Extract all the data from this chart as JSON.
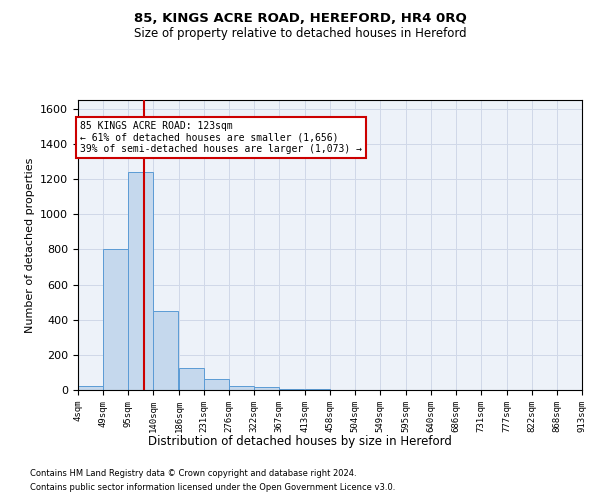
{
  "title1": "85, KINGS ACRE ROAD, HEREFORD, HR4 0RQ",
  "title2": "Size of property relative to detached houses in Hereford",
  "xlabel": "Distribution of detached houses by size in Hereford",
  "ylabel": "Number of detached properties",
  "annotation_line1": "85 KINGS ACRE ROAD: 123sqm",
  "annotation_line2": "← 61% of detached houses are smaller (1,656)",
  "annotation_line3": "39% of semi-detached houses are larger (1,073) →",
  "footer1": "Contains HM Land Registry data © Crown copyright and database right 2024.",
  "footer2": "Contains public sector information licensed under the Open Government Licence v3.0.",
  "property_size": 123,
  "bin_edges": [
    4,
    49,
    95,
    140,
    186,
    231,
    276,
    322,
    367,
    413,
    458,
    504,
    549,
    595,
    640,
    686,
    731,
    777,
    822,
    868,
    913
  ],
  "bin_counts": [
    25,
    800,
    1240,
    450,
    125,
    60,
    20,
    15,
    8,
    3,
    2,
    1,
    1,
    1,
    1,
    0,
    0,
    0,
    0,
    0
  ],
  "bar_color": "#c5d8ed",
  "bar_edge_color": "#5b9bd5",
  "vline_color": "#cc0000",
  "annotation_box_edge": "#cc0000",
  "grid_color": "#d0d8e8",
  "background_color": "#edf2f9",
  "ylim": [
    0,
    1650
  ],
  "yticks": [
    0,
    200,
    400,
    600,
    800,
    1000,
    1200,
    1400,
    1600
  ]
}
